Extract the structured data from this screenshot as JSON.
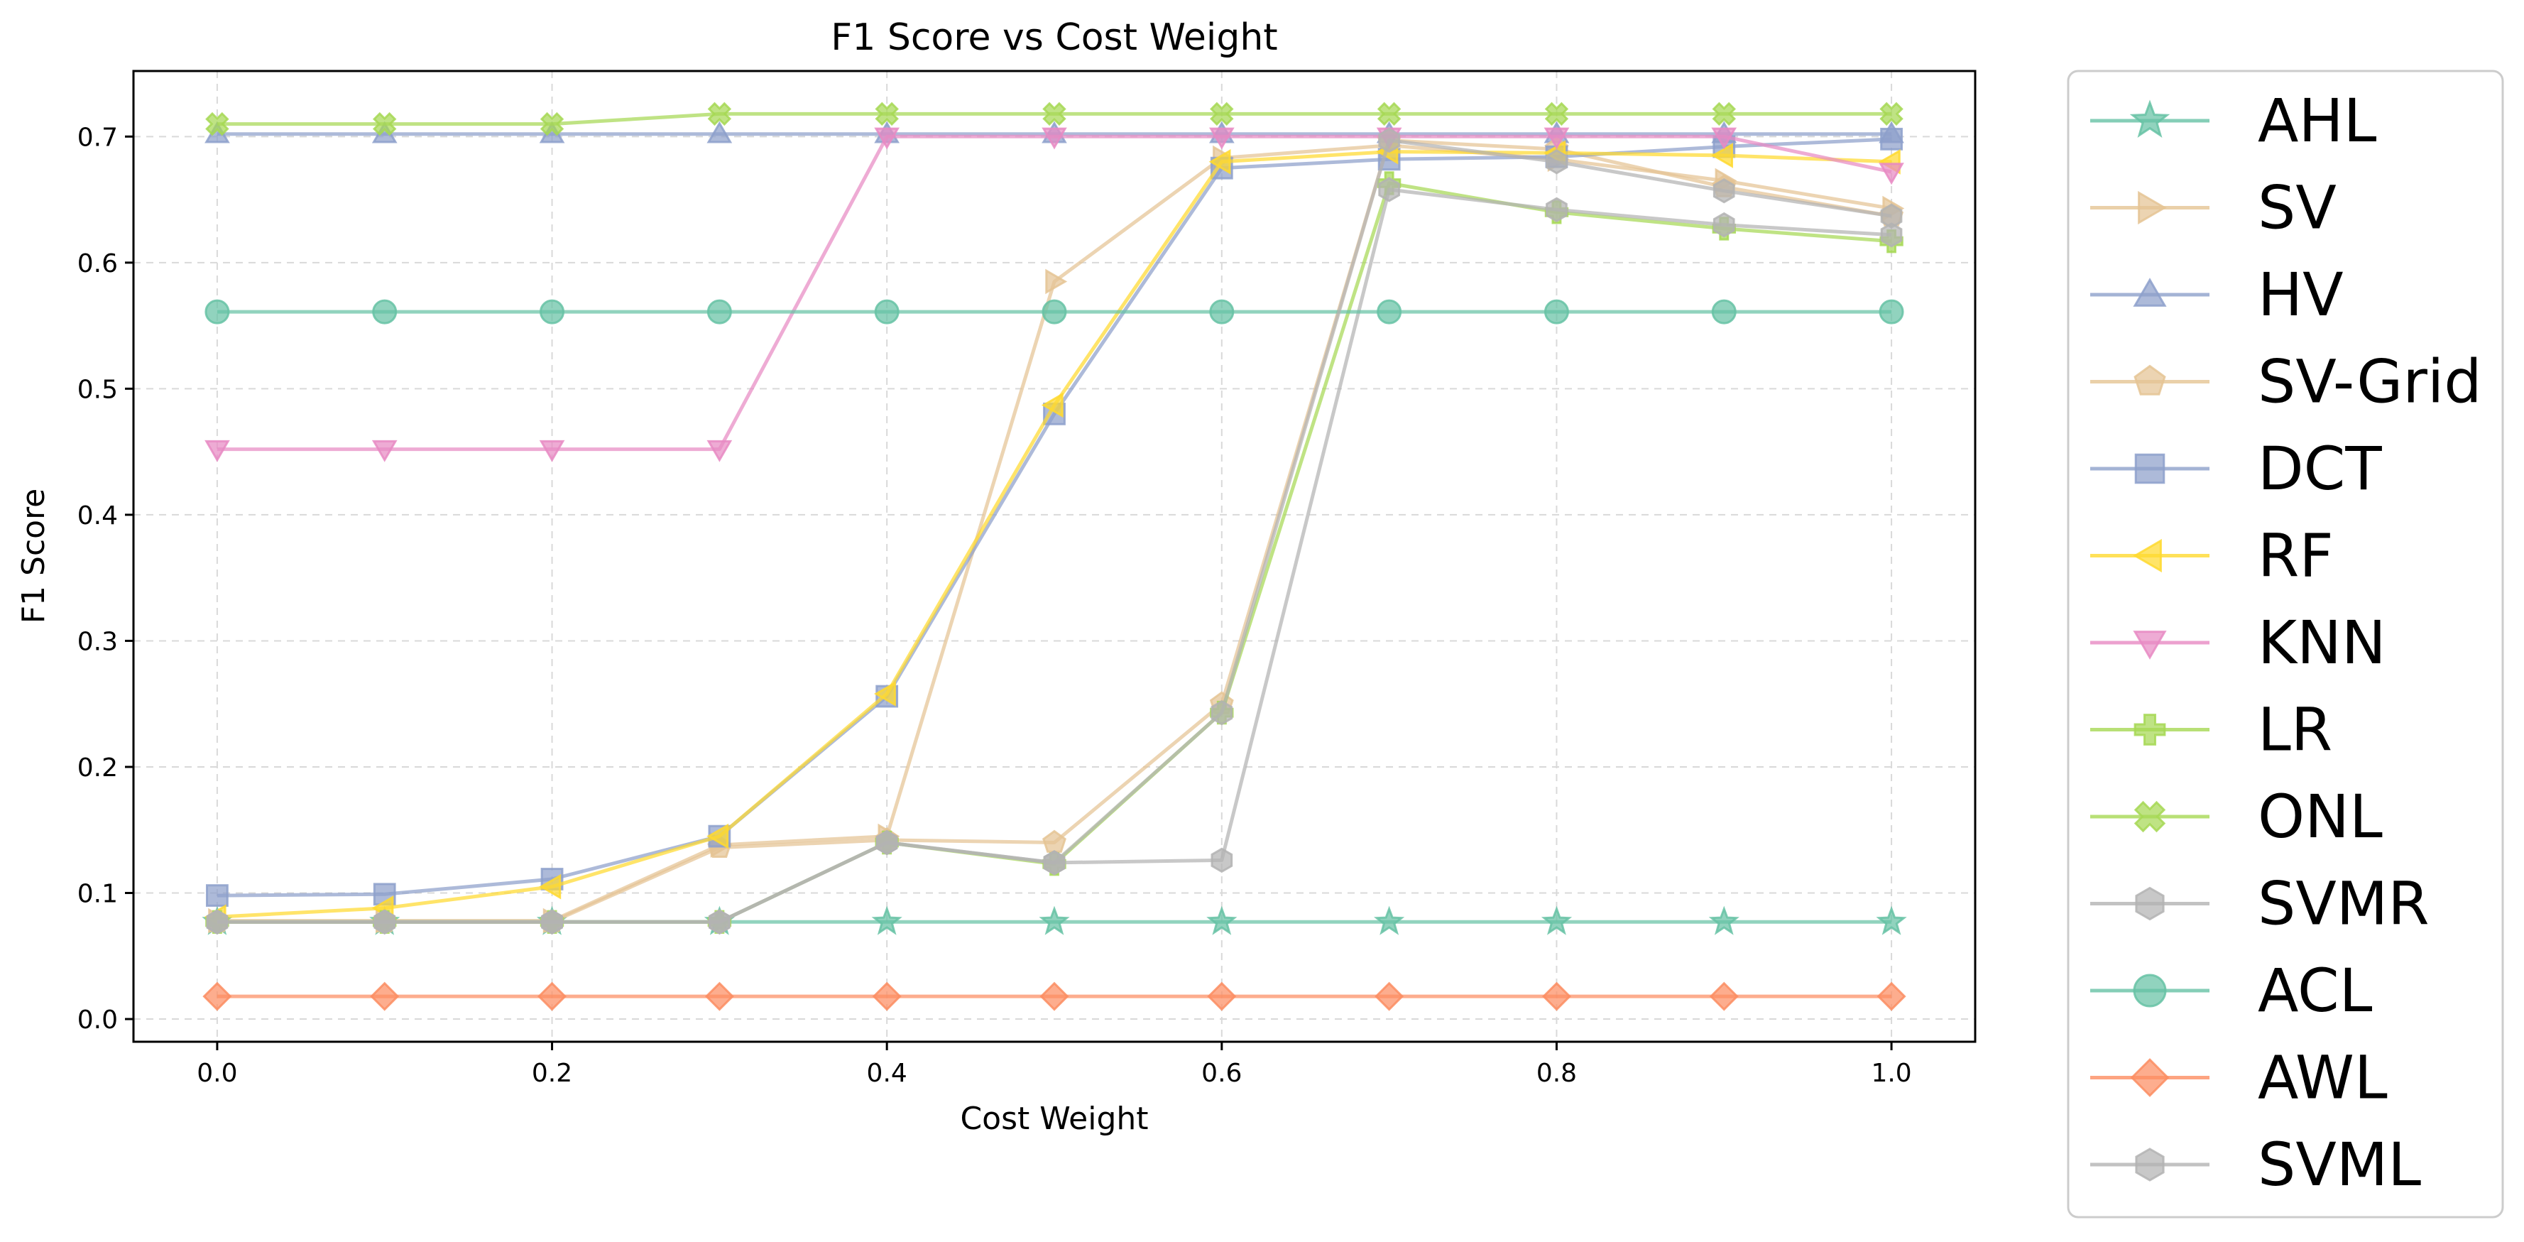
{
  "chart_data": {
    "type": "line",
    "title": "F1 Score vs Cost Weight",
    "xlabel": "Cost Weight",
    "ylabel": "F1 Score",
    "xlim": [
      -0.05,
      1.05
    ],
    "ylim": [
      -0.018,
      0.752
    ],
    "xticks": [
      "0.0",
      "0.2",
      "0.4",
      "0.6",
      "0.8",
      "1.0"
    ],
    "yticks": [
      "0.0",
      "0.1",
      "0.2",
      "0.3",
      "0.4",
      "0.5",
      "0.6",
      "0.7"
    ],
    "grid": true,
    "legend_position": "outside-right",
    "x": [
      0.0,
      0.1,
      0.2,
      0.3,
      0.4,
      0.5,
      0.6,
      0.7,
      0.8,
      0.9,
      1.0
    ],
    "series": [
      {
        "name": "AHL",
        "color": "#66c2a5",
        "marker": "star",
        "values": [
          0.077,
          0.077,
          0.077,
          0.077,
          0.077,
          0.077,
          0.077,
          0.077,
          0.077,
          0.077,
          0.077
        ]
      },
      {
        "name": "SV",
        "color": "#e5c494",
        "marker": "triangle-right",
        "values": [
          0.078,
          0.078,
          0.078,
          0.138,
          0.145,
          0.585,
          0.683,
          0.693,
          0.682,
          0.665,
          0.643
        ]
      },
      {
        "name": "HV",
        "color": "#8da0cb",
        "marker": "triangle-up",
        "values": [
          0.702,
          0.702,
          0.702,
          0.702,
          0.702,
          0.702,
          0.702,
          0.702,
          0.702,
          0.702,
          0.702
        ]
      },
      {
        "name": "SV-Grid",
        "color": "#e5c494",
        "marker": "pentagon",
        "values": [
          0.077,
          0.077,
          0.077,
          0.136,
          0.142,
          0.14,
          0.25,
          0.697,
          0.69,
          0.66,
          0.637
        ]
      },
      {
        "name": "DCT",
        "color": "#8da0cb",
        "marker": "square",
        "values": [
          0.098,
          0.099,
          0.111,
          0.145,
          0.256,
          0.48,
          0.675,
          0.682,
          0.684,
          0.692,
          0.698
        ]
      },
      {
        "name": "RF",
        "color": "#ffd92f",
        "marker": "triangle-left",
        "values": [
          0.081,
          0.088,
          0.105,
          0.145,
          0.258,
          0.487,
          0.68,
          0.688,
          0.687,
          0.685,
          0.68
        ]
      },
      {
        "name": "KNN",
        "color": "#e78ac3",
        "marker": "triangle-down",
        "values": [
          0.452,
          0.452,
          0.452,
          0.452,
          0.7,
          0.7,
          0.7,
          0.7,
          0.7,
          0.7,
          0.672
        ]
      },
      {
        "name": "LR",
        "color": "#a6d854",
        "marker": "plus",
        "values": [
          0.077,
          0.077,
          0.077,
          0.077,
          0.14,
          0.123,
          0.243,
          0.663,
          0.64,
          0.627,
          0.617
        ]
      },
      {
        "name": "ONL",
        "color": "#a6d854",
        "marker": "x",
        "values": [
          0.71,
          0.71,
          0.71,
          0.718,
          0.718,
          0.718,
          0.718,
          0.718,
          0.718,
          0.718,
          0.718
        ]
      },
      {
        "name": "SVMR",
        "color": "#b3b3b3",
        "marker": "hexagon",
        "values": [
          0.077,
          0.077,
          0.077,
          0.077,
          0.14,
          0.124,
          0.126,
          0.658,
          0.642,
          0.63,
          0.622
        ]
      },
      {
        "name": "ACL",
        "color": "#66c2a5",
        "marker": "circle",
        "values": [
          0.561,
          0.561,
          0.561,
          0.561,
          0.561,
          0.561,
          0.561,
          0.561,
          0.561,
          0.561,
          0.561
        ]
      },
      {
        "name": "AWL",
        "color": "#fc8d62",
        "marker": "diamond",
        "values": [
          0.018,
          0.018,
          0.018,
          0.018,
          0.018,
          0.018,
          0.018,
          0.018,
          0.018,
          0.018,
          0.018
        ]
      },
      {
        "name": "SVML",
        "color": "#b3b3b3",
        "marker": "hexagon",
        "values": [
          0.077,
          0.077,
          0.077,
          0.077,
          0.14,
          0.124,
          0.243,
          0.697,
          0.68,
          0.657,
          0.637
        ]
      }
    ]
  }
}
